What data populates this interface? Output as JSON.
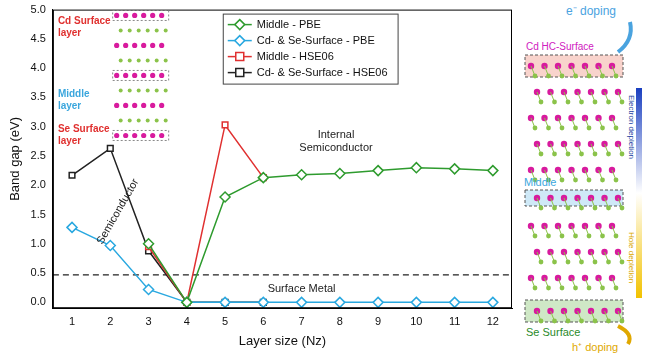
{
  "chart_data": {
    "type": "line",
    "x_label": "Layer size (Nz)",
    "y_label": "Band gap (eV)",
    "x": [
      1,
      2,
      3,
      4,
      5,
      6,
      7,
      8,
      9,
      10,
      11,
      12
    ],
    "xlim": [
      0.5,
      12.5
    ],
    "xticks": [
      1,
      2,
      3,
      4,
      5,
      6,
      7,
      8,
      9,
      10,
      11,
      12
    ],
    "ylim": [
      -0.1,
      5.0
    ],
    "yticks": [
      {
        "value": 0,
        "label": "0.0"
      },
      {
        "value": 0.5,
        "label": "0.5"
      },
      {
        "value": 1,
        "label": "1.0"
      },
      {
        "value": 1.5,
        "label": "1.5"
      },
      {
        "value": 2,
        "label": "2.0"
      },
      {
        "value": 2.5,
        "label": "2.5"
      },
      {
        "value": 3,
        "label": "3.0"
      },
      {
        "value": 3.5,
        "label": "3.5"
      },
      {
        "value": 4,
        "label": "4.0"
      },
      {
        "value": 4.5,
        "label": "4.5"
      },
      {
        "value": 5,
        "label": "5.0"
      }
    ],
    "grid": false,
    "legend": "top",
    "series": [
      {
        "name": "Middle - PBE",
        "color": "#2e9b2e",
        "marker": "diamond",
        "values": [
          null,
          null,
          1.0,
          0,
          1.8,
          2.13,
          2.18,
          2.2,
          2.25,
          2.3,
          2.28,
          2.25
        ]
      },
      {
        "name": "Cd- & Se-Surface - PBE",
        "color": "#29a8e0",
        "marker": "diamond",
        "values": [
          1.28,
          0.97,
          0.22,
          0,
          0,
          0,
          0,
          0,
          0,
          0,
          0,
          0
        ]
      },
      {
        "name": "Middle - HSE06",
        "color": "#e03030",
        "marker": "square",
        "values": [
          null,
          null,
          0.95,
          0,
          3.03,
          2.13,
          null,
          null,
          null,
          null,
          null,
          null
        ]
      },
      {
        "name": "Cd- & Se-Surface - HSE06",
        "color": "#222222",
        "marker": "square",
        "values": [
          2.17,
          2.63,
          0.88,
          0,
          0,
          0,
          null,
          null,
          null,
          null,
          null,
          null
        ]
      }
    ],
    "reference_line": {
      "value": 0.47,
      "label": "Surface Metal",
      "line_style": "dashed"
    },
    "annotations": [
      {
        "text": "Internal Semiconductor",
        "color": "#222222"
      },
      {
        "text": "Semiconductor",
        "color": "#222222"
      }
    ],
    "inset_labels": [
      {
        "text": "Cd Surface layer",
        "color": "#e0302f"
      },
      {
        "text": "Middle layer",
        "color": "#3aa6dd"
      },
      {
        "text": "Se Surface layer",
        "color": "#e0302f"
      }
    ]
  },
  "structure_diagram": {
    "top_doping": "e⁻ doping",
    "top_layer": "Cd HC-Surface",
    "upper_bar": "Electron depletion",
    "middle_layer": "Middle",
    "lower_bar": "Hole depletion",
    "bottom_layer": "Se Surface",
    "bottom_doping": "h⁺ doping"
  }
}
